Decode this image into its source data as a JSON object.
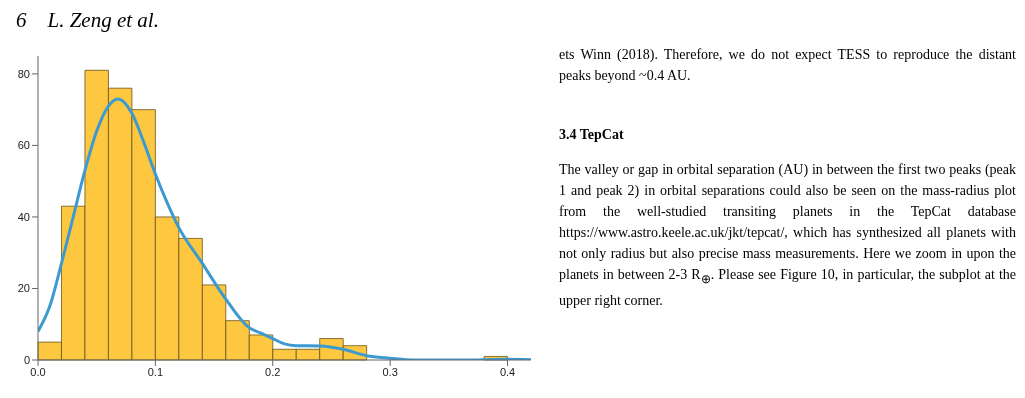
{
  "chart_data": {
    "type": "histogram",
    "title": "6    L. Zeng et al.",
    "xlim": [
      0,
      0.42
    ],
    "xticks": [
      {
        "value": 0,
        "label": "0.0"
      },
      {
        "value": 0.1,
        "label": "0.1"
      },
      {
        "value": 0.2,
        "label": "0.2"
      },
      {
        "value": 0.3,
        "label": "0.3"
      },
      {
        "value": 0.4,
        "label": "0.4"
      }
    ],
    "ylim": [
      0,
      85
    ],
    "yticks": [
      0,
      20,
      40,
      60,
      80
    ],
    "grid": false,
    "series": [
      {
        "color": "#fdc83f",
        "bins": [
          0,
          0.02,
          0.04,
          0.06,
          0.08,
          0.1,
          0.12,
          0.14,
          0.16,
          0.18,
          0.2,
          0.22,
          0.24,
          0.26,
          0.28,
          0.3,
          0.32,
          0.34,
          0.36,
          0.38,
          0.4,
          0.42
        ],
        "values": [
          5,
          43,
          81,
          76,
          70,
          40,
          34,
          21,
          11,
          7,
          3,
          3,
          6,
          4,
          0,
          0,
          0,
          0,
          0,
          1,
          0
        ]
      },
      {
        "type": "line",
        "color": "#3d9ad1",
        "marker": "none",
        "line_style": "solid",
        "x": [
          0,
          0.01,
          0.02,
          0.03,
          0.04,
          0.05,
          0.06,
          0.068,
          0.08,
          0.09,
          0.1,
          0.11,
          0.12,
          0.14,
          0.16,
          0.18,
          0.19,
          0.2,
          0.21,
          0.22,
          0.24,
          0.26,
          0.28,
          0.3,
          0.32,
          0.36,
          0.4,
          0.42
        ],
        "values": [
          8,
          15,
          27,
          40,
          53,
          64,
          71,
          73,
          69,
          61,
          52,
          44,
          37,
          27,
          17,
          9,
          7.5,
          6,
          4.5,
          4,
          3.9,
          3,
          1.2,
          0.5,
          0,
          0,
          0.2,
          0.1
        ]
      }
    ],
    "annotations": [
      "ets Winn (2018). Therefore, we do not expect TESS to reproduce the distant peaks beyond ~0.4 AU.",
      "3.4  TepCat",
      "The valley or gap in orbital separation (AU) in between the first two peaks (peak 1 and peak 2) in orbital separations could also be seen on the mass-radius plot from the well-studied transiting planets in the TepCat database https://www.astro.keele.ac.uk/jkt/tepcat/, which has synthesized all planets with not only radius but also precise mass measurements. Here we zoom in upon the planets in between 2-3 R$_{⊕}$. Please see Figure 10, in particular, the subplot at the upper right corner."
    ]
  }
}
